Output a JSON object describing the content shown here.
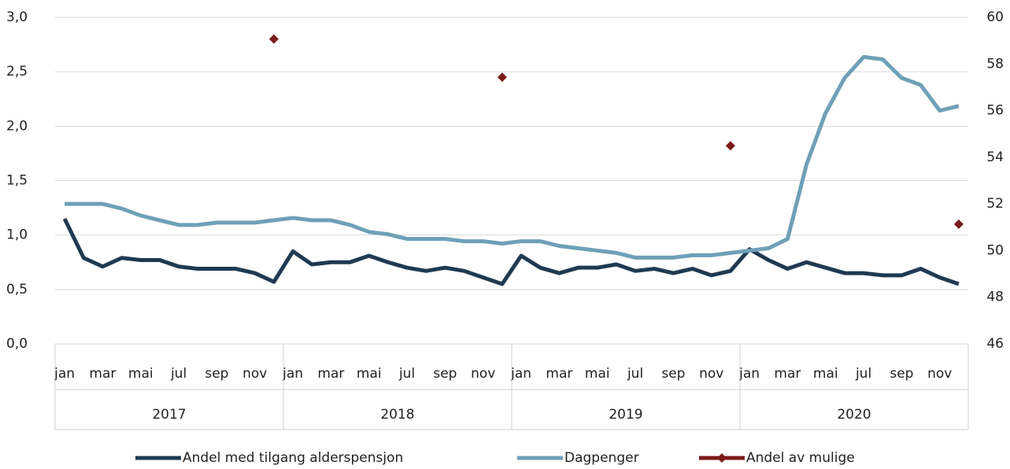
{
  "chart_data": {
    "type": "line",
    "categories": [
      "jan",
      null,
      "mar",
      null,
      "mai",
      null,
      "jul",
      null,
      "sep",
      null,
      "nov",
      null,
      "jan",
      null,
      "mar",
      null,
      "mai",
      null,
      "jul",
      null,
      "sep",
      null,
      "nov",
      null,
      "jan",
      null,
      "mar",
      null,
      "mai",
      null,
      "jul",
      null,
      "sep",
      null,
      "nov",
      null,
      "jan",
      null,
      "mar",
      null,
      "mai",
      null,
      "jul",
      null,
      "sep",
      null,
      "nov",
      null
    ],
    "groups": [
      "2017",
      "2018",
      "2019",
      "2020"
    ],
    "series": [
      {
        "name": "Andel med tilgang alderspensjon",
        "color": "#1f3a52",
        "kind": "line",
        "values": [
          1.15,
          0.79,
          0.71,
          0.79,
          0.77,
          0.77,
          0.71,
          0.69,
          0.69,
          0.69,
          0.65,
          0.57,
          0.85,
          0.73,
          0.75,
          0.75,
          0.81,
          0.75,
          0.7,
          0.67,
          0.7,
          0.67,
          0.61,
          0.55,
          0.81,
          0.7,
          0.65,
          0.7,
          0.7,
          0.73,
          0.67,
          0.69,
          0.65,
          0.69,
          0.63,
          0.67,
          0.87,
          0.77,
          0.69,
          0.75,
          0.7,
          0.65,
          0.65,
          0.63,
          0.63,
          0.69,
          0.61,
          0.55
        ]
      },
      {
        "name": "Dagpenger",
        "color": "#6fa0b8",
        "kind": "line",
        "axis": "y2",
        "values": [
          52.0,
          52.0,
          52.0,
          51.8,
          51.5,
          51.3,
          51.1,
          51.1,
          51.2,
          51.2,
          51.2,
          51.3,
          51.4,
          51.3,
          51.3,
          51.1,
          50.8,
          50.7,
          50.5,
          50.5,
          50.5,
          50.4,
          50.4,
          50.3,
          50.4,
          50.4,
          50.2,
          50.1,
          50.0,
          49.9,
          49.7,
          49.7,
          49.7,
          49.8,
          49.8,
          49.9,
          50.0,
          50.1,
          50.5,
          53.7,
          55.9,
          57.4,
          58.3,
          58.2,
          57.4,
          57.1,
          56.0,
          56.2
        ]
      },
      {
        "name": "Andel av mulige",
        "color": "#7b1a1a",
        "kind": "marker",
        "values": [
          null,
          null,
          null,
          null,
          null,
          null,
          null,
          null,
          null,
          null,
          null,
          2.8,
          null,
          null,
          null,
          null,
          null,
          null,
          null,
          null,
          null,
          null,
          null,
          2.45,
          null,
          null,
          null,
          null,
          null,
          null,
          null,
          null,
          null,
          null,
          null,
          1.82,
          null,
          null,
          null,
          null,
          null,
          null,
          null,
          null,
          null,
          null,
          null,
          1.1
        ]
      }
    ],
    "ylim": [
      0,
      3
    ],
    "yticks": [
      {
        "value": 0,
        "label": "0,0"
      },
      {
        "value": 0.5,
        "label": "0,5"
      },
      {
        "value": 1,
        "label": "1,0"
      },
      {
        "value": 1.5,
        "label": "1,5"
      },
      {
        "value": 2,
        "label": "2,0"
      },
      {
        "value": 2.5,
        "label": "2,5"
      },
      {
        "value": 3,
        "label": "3,0"
      }
    ],
    "y2lim": [
      46,
      60
    ],
    "y2ticks": [
      46,
      48,
      50,
      52,
      54,
      56,
      58,
      60
    ],
    "grid": true,
    "legend": "bottom"
  }
}
